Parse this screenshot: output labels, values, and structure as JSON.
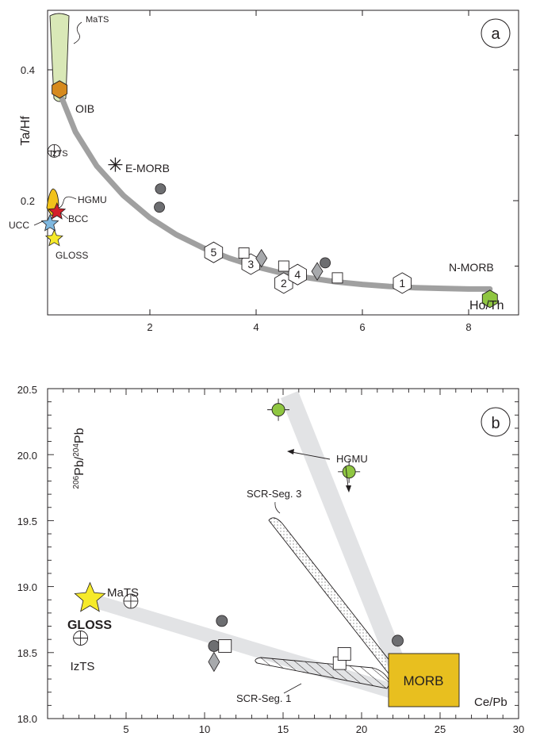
{
  "chart_data": [
    {
      "panel": "a",
      "type": "scatter",
      "ylabel": "Ta/Hf",
      "xlabel": "Ho/Th",
      "xlim": [
        0,
        9
      ],
      "ylim": [
        0,
        0.5
      ],
      "xticks": [
        "2",
        "4",
        "6",
        "8"
      ],
      "yticks": [
        "0.2",
        "0.4"
      ],
      "labels": {
        "mats": "MaTS",
        "oib": "OIB",
        "izts": "IzTS",
        "emorb": "E-MORB",
        "hgmu": "HGMU",
        "bcc": "BCC",
        "ucc": "UCC",
        "gloss": "GLOSS",
        "nmorb": "N-MORB",
        "xlabel": "Ho/Th",
        "badge": "a"
      },
      "mixing_curve": {
        "x": [
          0.35,
          0.6,
          1.0,
          1.5,
          2.0,
          2.5,
          3.0,
          3.5,
          4.0,
          4.5,
          5.0,
          5.5,
          6.0,
          6.5,
          7.0,
          7.5,
          8.0,
          8.4
        ],
        "y": [
          0.355,
          0.305,
          0.253,
          0.208,
          0.174,
          0.148,
          0.128,
          0.112,
          0.099,
          0.089,
          0.082,
          0.076,
          0.072,
          0.069,
          0.067,
          0.066,
          0.065,
          0.065
        ]
      },
      "mixing_labels": [
        {
          "label": "5",
          "x": 3.2,
          "y": 0.121
        },
        {
          "label": "3",
          "x": 3.9,
          "y": 0.103
        },
        {
          "label": "2",
          "x": 4.52,
          "y": 0.074
        },
        {
          "label": "4",
          "x": 4.78,
          "y": 0.087
        },
        {
          "label": "1",
          "x": 6.75,
          "y": 0.074
        }
      ],
      "end_members": [
        {
          "name": "OIB",
          "x": 0.3,
          "y": 0.37,
          "color": "#d68a1e",
          "shape": "hexagon"
        },
        {
          "name": "N-MORB",
          "x": 8.4,
          "y": 0.05,
          "color": "#8fc641",
          "shape": "hexagon"
        },
        {
          "name": "E-MORB",
          "x": 1.35,
          "y": 0.255,
          "shape": "asterisk"
        },
        {
          "name": "IzTS",
          "x": 0.2,
          "y": 0.276,
          "shape": "circle-cross"
        },
        {
          "name": "BCC",
          "x": 0.25,
          "y": 0.183,
          "color": "#d4202a",
          "shape": "star"
        },
        {
          "name": "UCC",
          "x": 0.12,
          "y": 0.165,
          "color": "#7fb8e0",
          "shape": "star"
        },
        {
          "name": "GLOSS",
          "x": 0.2,
          "y": 0.142,
          "color": "#f6ea2a",
          "shape": "star"
        }
      ],
      "gray_circles": [
        {
          "x": 2.2,
          "y": 0.218
        },
        {
          "x": 2.18,
          "y": 0.19
        },
        {
          "x": 5.3,
          "y": 0.105
        }
      ],
      "squares": [
        {
          "x": 3.77,
          "y": 0.12
        },
        {
          "x": 4.52,
          "y": 0.1
        },
        {
          "x": 5.53,
          "y": 0.082
        }
      ],
      "diamonds": [
        {
          "x": 4.1,
          "y": 0.112
        },
        {
          "x": 5.15,
          "y": 0.092
        }
      ]
    },
    {
      "panel": "b",
      "type": "scatter",
      "ylabel": "206Pb/204Pb",
      "xlabel": "Ce/Pb",
      "xlim": [
        0,
        30
      ],
      "ylim": [
        18.0,
        20.5
      ],
      "xticks": [
        "5",
        "10",
        "15",
        "20",
        "25",
        "30"
      ],
      "yticks": [
        "18.0",
        "18.5",
        "19.0",
        "19.5",
        "20.0",
        "20.5"
      ],
      "labels": {
        "hgmu": "HGMU",
        "scr_seg3": "SCR-Seg. 3",
        "mats": "MaTS",
        "gloss": "GLOSS",
        "izts": "IzTS",
        "morb": "MORB",
        "scr_seg1": "SCR-Seg. 1",
        "xlabel": "Ce/Pb",
        "badge": "b"
      },
      "end_members": [
        {
          "name": "GLOSS",
          "x": 2.7,
          "y": 18.91,
          "color": "#f6ea2a",
          "shape": "star"
        },
        {
          "name": "MaTS",
          "x": 5.3,
          "y": 18.89,
          "shape": "circle-cross"
        },
        {
          "name": "IzTS",
          "x": 2.1,
          "y": 18.61,
          "shape": "circle-cross"
        },
        {
          "name": "MORB",
          "x": 23.5,
          "y": 18.32,
          "color": "#e8bf1f",
          "shape": "box"
        }
      ],
      "hgmu_points": [
        {
          "x": 14.7,
          "y": 20.34
        },
        {
          "x": 19.2,
          "y": 19.87
        }
      ],
      "gray_circles": [
        {
          "x": 11.1,
          "y": 18.74
        },
        {
          "x": 10.6,
          "y": 18.55
        },
        {
          "x": 22.3,
          "y": 18.59
        }
      ],
      "squares": [
        {
          "x": 11.3,
          "y": 18.55
        },
        {
          "x": 18.6,
          "y": 18.42
        },
        {
          "x": 18.9,
          "y": 18.49
        }
      ],
      "diamonds": [
        {
          "x": 10.6,
          "y": 18.43
        }
      ]
    }
  ]
}
